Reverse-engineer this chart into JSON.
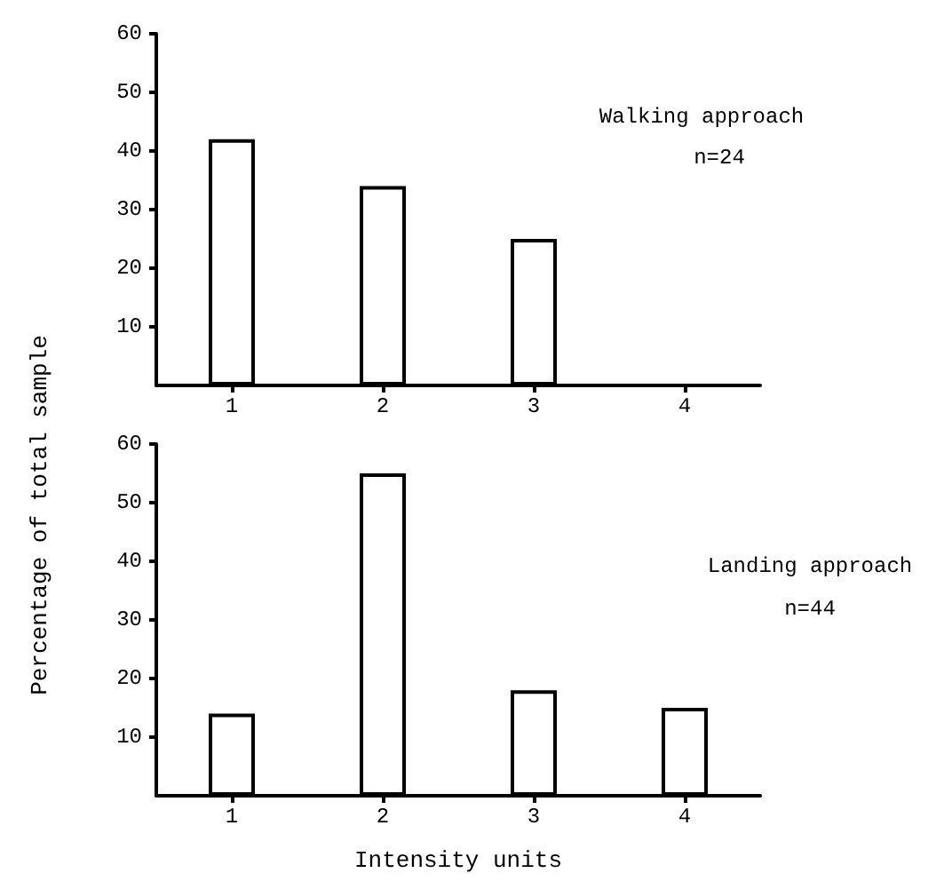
{
  "chart_data": [
    {
      "type": "bar",
      "ylabel": "Percentage of total sample",
      "categories": [
        "1",
        "2",
        "3",
        "4"
      ],
      "values": [
        42,
        34,
        25,
        null
      ],
      "color": "#ffffff",
      "ylim": [
        0,
        60
      ],
      "yticks": [
        10,
        20,
        30,
        40,
        50,
        60
      ],
      "annotations": [
        "Walking approach",
        "n=24"
      ]
    },
    {
      "type": "bar",
      "xlabel": "Intensity units",
      "categories": [
        "1",
        "2",
        "3",
        "4"
      ],
      "values": [
        14,
        55,
        18,
        15
      ],
      "color": "#ffffff",
      "ylim": [
        0,
        60
      ],
      "yticks": [
        10,
        20,
        30,
        40,
        50,
        60
      ],
      "annotations": [
        "Landing approach",
        "n=44"
      ]
    }
  ]
}
